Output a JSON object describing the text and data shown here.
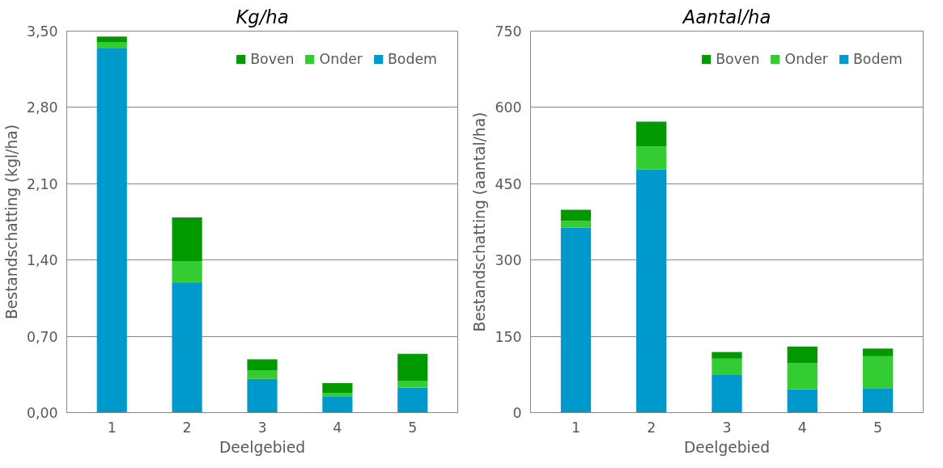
{
  "chart_data": [
    {
      "type": "bar",
      "stacked": true,
      "title": "Kg/ha",
      "xlabel": "Deelgebied",
      "ylabel": "Bestandschatting (kgl/ha)",
      "categories": [
        "1",
        "2",
        "3",
        "4",
        "5"
      ],
      "series": [
        {
          "name": "Bodem",
          "color": "#0099cc",
          "values": [
            3.34,
            1.19,
            0.31,
            0.15,
            0.23
          ]
        },
        {
          "name": "Onder",
          "color": "#33cc33",
          "values": [
            0.06,
            0.2,
            0.08,
            0.03,
            0.06
          ]
        },
        {
          "name": "Boven",
          "color": "#009900",
          "values": [
            0.05,
            0.4,
            0.1,
            0.09,
            0.25
          ]
        }
      ],
      "ylim": [
        0,
        3.5
      ],
      "yticks": [
        {
          "value": 0,
          "label": "0,00"
        },
        {
          "value": 0.7,
          "label": "0,70"
        },
        {
          "value": 1.4,
          "label": "1,40"
        },
        {
          "value": 2.1,
          "label": "2,10"
        },
        {
          "value": 2.8,
          "label": "2,80"
        },
        {
          "value": 3.5,
          "label": "3,50"
        }
      ],
      "grid": "y",
      "legend": "top right"
    },
    {
      "type": "bar",
      "stacked": true,
      "title": "Aantal/ha",
      "xlabel": "Deelgebied",
      "ylabel": "Bestandschatting (aantal/ha)",
      "categories": [
        "1",
        "2",
        "3",
        "4",
        "5"
      ],
      "series": [
        {
          "name": "Bodem",
          "color": "#0099cc",
          "values": [
            364,
            478,
            75,
            46,
            48
          ]
        },
        {
          "name": "Onder",
          "color": "#33cc33",
          "values": [
            13,
            45,
            31,
            51,
            63
          ]
        },
        {
          "name": "Boven",
          "color": "#009900",
          "values": [
            22,
            49,
            13,
            33,
            15
          ]
        }
      ],
      "ylim": [
        0,
        750
      ],
      "yticks": [
        0,
        150,
        300,
        450,
        600,
        750
      ],
      "grid": "y",
      "legend": "top right"
    }
  ]
}
